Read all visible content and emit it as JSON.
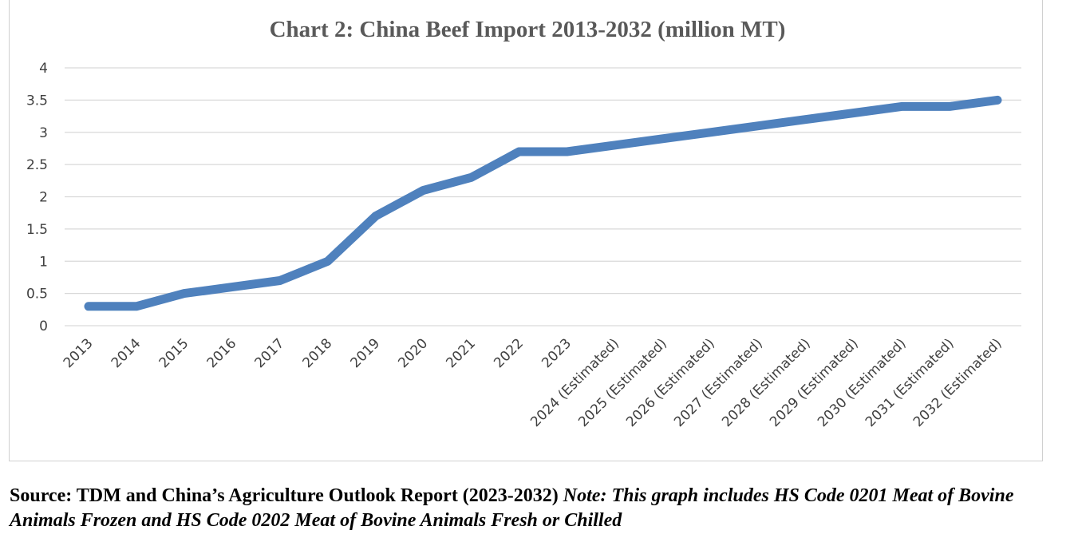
{
  "chart_data": {
    "type": "line",
    "title": "Chart 2: China Beef Import 2013-2032 (million MT)",
    "xlabel": "",
    "ylabel": "",
    "ylim": [
      0,
      4
    ],
    "yticks": [
      "0",
      "0.5",
      "1",
      "1.5",
      "2",
      "2.5",
      "3",
      "3.5",
      "4"
    ],
    "grid": true,
    "legend": "none",
    "categories": [
      "2013",
      "2014",
      "2015",
      "2016",
      "2017",
      "2018",
      "2019",
      "2020",
      "2021",
      "2022",
      "2023",
      "2024 (Estimated)",
      "2025 (Estimated)",
      "2026 (Estimated)",
      "2027 (Estimated)",
      "2028 (Estimated)",
      "2029 (Estimated)",
      "2030 (Estimated)",
      "2031 (Estimated)",
      "2032 (Estimated)"
    ],
    "series": [
      {
        "values": [
          0.3,
          0.3,
          0.5,
          0.6,
          0.7,
          1.0,
          1.7,
          2.1,
          2.3,
          2.7,
          2.7,
          2.8,
          2.9,
          3.0,
          3.1,
          3.2,
          3.3,
          3.4,
          3.4,
          3.5
        ],
        "color": "#4f81bd"
      }
    ]
  },
  "caption": {
    "source": "Source: TDM and China’s Agriculture Outlook Report (2023-2032)",
    "note": "Note: This graph includes HS Code 0201 Meat of Bovine Animals Frozen and HS Code 0202 Meat of Bovine Animals Fresh or Chilled"
  }
}
